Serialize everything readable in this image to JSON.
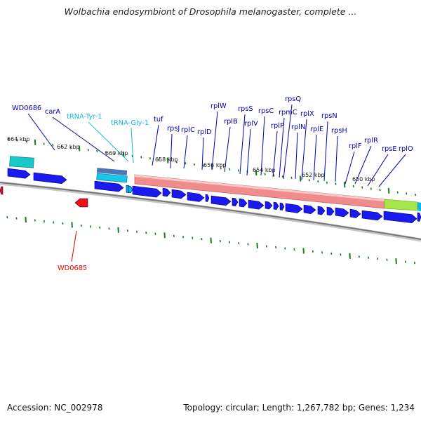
{
  "title": "Wolbachia endosymbiont of Drosophila melanogaster, complete ...",
  "accession": "Accession: NC_002978",
  "summary": "Topology: circular; Length: 1,267,782 bp; Genes: 1,234",
  "colors": {
    "protein_gene": "#1a1af0",
    "trna_gene": "#00b8f0",
    "reverse_gene": "#ee1111",
    "operon_band": "#f08c8c",
    "green_band": "#a4e64a",
    "backbone": "#888888",
    "tick": "#1b7a1b",
    "label_dark": "#0000aa",
    "label_trna": "#1ab8e8",
    "label_red": "#dd0000"
  },
  "kbp_labels": [
    "664 kbp",
    "662 kbp",
    "660 kbp",
    "658 kbp",
    "656 kbp",
    "654 kbp",
    "652 kbp",
    "650 kbp"
  ],
  "gene_labels": {
    "WD0686": "WD0686",
    "carA": "carA",
    "tRNA-Tyr-1": "tRNA-Tyr-1",
    "tRNA-Gly-1": "tRNA-Gly-1",
    "tuf": "tuf",
    "rpsJ": "rpsJ",
    "rplC": "rplC",
    "rplD": "rplD",
    "rplW": "rplW",
    "rplB": "rplB",
    "rpsS": "rpsS",
    "rplV": "rplV",
    "rpsC": "rpsC",
    "rplP": "rplP",
    "rpmC": "rpmC",
    "rpsQ": "rpsQ",
    "rplN": "rplN",
    "rplX": "rplX",
    "rplE": "rplE",
    "rpsN": "rpsN",
    "rpsH": "rpsH",
    "rplF": "rplF",
    "rplR": "rplR",
    "rpsE": "rpsE",
    "rplO": "rplO",
    "WD0685": "WD0685"
  }
}
